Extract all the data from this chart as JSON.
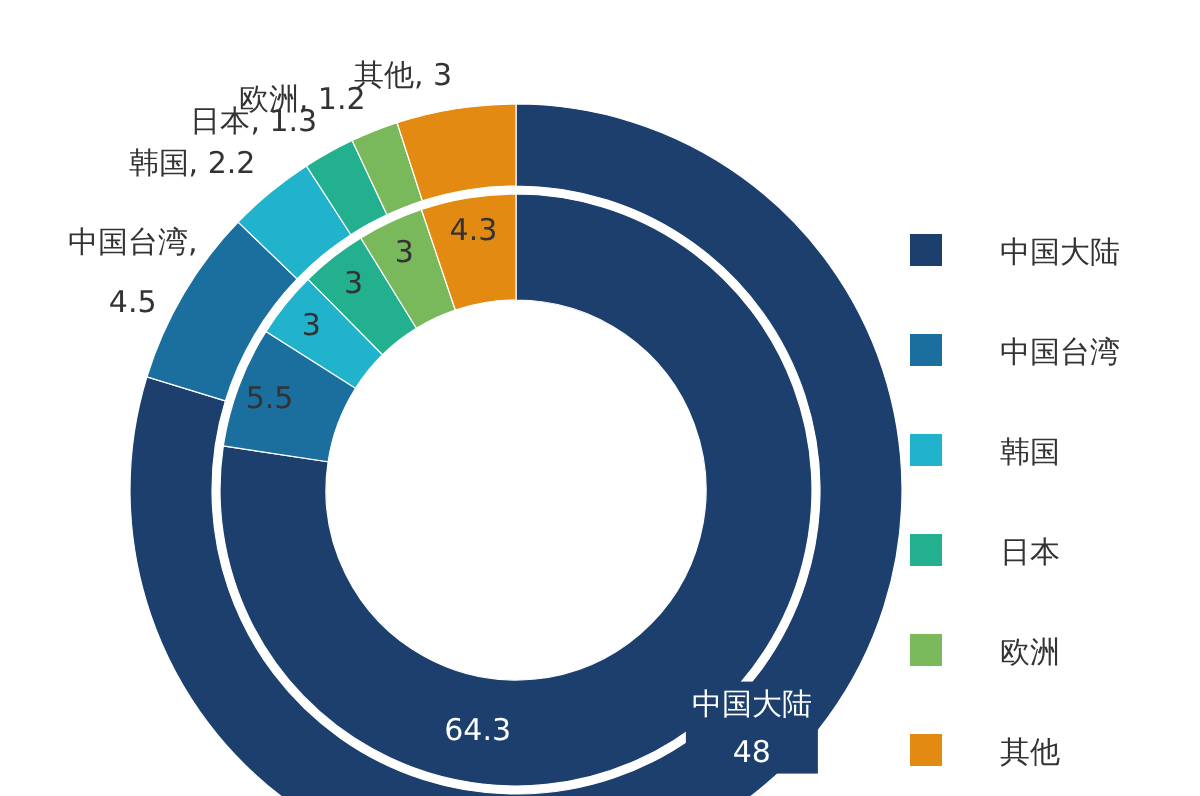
{
  "chart_data": {
    "type": "donut",
    "categories": [
      "中国大陆",
      "中国台湾",
      "韩国",
      "日本",
      "欧洲",
      "其他"
    ],
    "series": [
      {
        "values": [
          64.3,
          5.5,
          3,
          3,
          3,
          4.3
        ],
        "value_labels": [
          "64.3",
          "5.5",
          "3",
          "3",
          "3",
          "4.3"
        ]
      },
      {
        "values": [
          48,
          4.5,
          2.2,
          1.3,
          1.2,
          3
        ],
        "value_labels": [
          "中国大陆\n48",
          "中国台湾,\n4.5",
          "韩国, 2.2",
          "日本, 1.3",
          "欧洲, 1.2",
          "其他, 3"
        ]
      }
    ],
    "colors": [
      "#1c3f6e",
      "#1b6f9f",
      "#22b3cc",
      "#22b08e",
      "#79b85b",
      "#e38a12"
    ],
    "legend": "right"
  }
}
